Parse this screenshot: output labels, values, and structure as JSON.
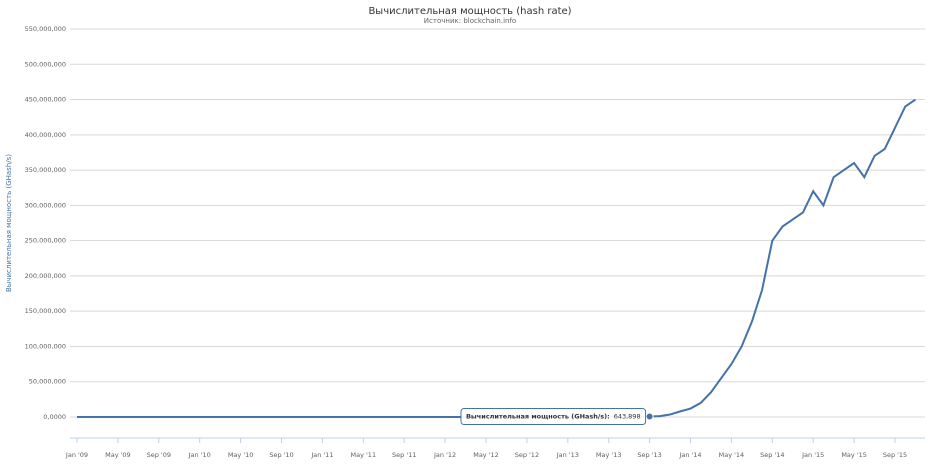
{
  "chart_data": {
    "type": "line",
    "title": "Вычислительная мощность (hash rate)",
    "subtitle": "Источник: blockchain.info",
    "y_label": "Вычислительная мощность (GHash/s)",
    "x": [
      "2009-01",
      "2009-02",
      "2009-03",
      "2009-04",
      "2009-05",
      "2009-06",
      "2009-07",
      "2009-08",
      "2009-09",
      "2009-10",
      "2009-11",
      "2009-12",
      "2010-01",
      "2010-02",
      "2010-03",
      "2010-04",
      "2010-05",
      "2010-06",
      "2010-07",
      "2010-08",
      "2010-09",
      "2010-10",
      "2010-11",
      "2010-12",
      "2011-01",
      "2011-02",
      "2011-03",
      "2011-04",
      "2011-05",
      "2011-06",
      "2011-07",
      "2011-08",
      "2011-09",
      "2011-10",
      "2011-11",
      "2011-12",
      "2012-01",
      "2012-02",
      "2012-03",
      "2012-04",
      "2012-05",
      "2012-06",
      "2012-07",
      "2012-08",
      "2012-09",
      "2012-10",
      "2012-11",
      "2012-12",
      "2013-01",
      "2013-02",
      "2013-03",
      "2013-04",
      "2013-05",
      "2013-06",
      "2013-07",
      "2013-08",
      "2013-09",
      "2013-10",
      "2013-11",
      "2013-12",
      "2014-01",
      "2014-02",
      "2014-03",
      "2014-04",
      "2014-05",
      "2014-06",
      "2014-07",
      "2014-08",
      "2014-09",
      "2014-10",
      "2014-11",
      "2014-12",
      "2015-01",
      "2015-02",
      "2015-03",
      "2015-04",
      "2015-05",
      "2015-06",
      "2015-07",
      "2015-08",
      "2015-09",
      "2015-10",
      "2015-11"
    ],
    "series": [
      {
        "name": "Вычислительная мощность (GHash/s)",
        "color": "#4572a7",
        "values": [
          0.004,
          0.005,
          0.006,
          0.007,
          0.007,
          0.008,
          0.01,
          0.01,
          0.01,
          0.02,
          0.03,
          0.05,
          0.1,
          0.2,
          0.3,
          0.5,
          1,
          2,
          5,
          20,
          50,
          100,
          150,
          200,
          300,
          600,
          1000,
          1500,
          2500,
          6000,
          10000,
          12000,
          10000,
          9000,
          8000,
          8500,
          9000,
          10000,
          11000,
          12000,
          13000,
          15000,
          18000,
          20000,
          22000,
          24000,
          25000,
          22000,
          24000,
          28000,
          40000,
          60000,
          80000,
          100000,
          180000,
          350000,
          643898,
          1200000,
          3500000,
          8000000,
          12000000,
          20000000,
          35000000,
          55000000,
          75000000,
          100000000,
          135000000,
          180000000,
          250000000,
          270000000,
          280000000,
          290000000,
          320000000,
          300000000,
          340000000,
          350000000,
          360000000,
          340000000,
          370000000,
          380000000,
          410000000,
          440000000,
          450000000
        ]
      }
    ],
    "ylim": [
      0,
      550000000
    ],
    "yticks": [
      {
        "value": 0,
        "label": "0,0000"
      },
      {
        "value": 50000000,
        "label": "50,000,000"
      },
      {
        "value": 100000000,
        "label": "100,000,000"
      },
      {
        "value": 150000000,
        "label": "150,000,000"
      },
      {
        "value": 200000000,
        "label": "200,000,000"
      },
      {
        "value": 250000000,
        "label": "250,000,000"
      },
      {
        "value": 300000000,
        "label": "300,000,000"
      },
      {
        "value": 350000000,
        "label": "350,000,000"
      },
      {
        "value": 400000000,
        "label": "400,000,000"
      },
      {
        "value": 450000000,
        "label": "450,000,000"
      },
      {
        "value": 500000000,
        "label": "500,000,000"
      },
      {
        "value": 550000000,
        "label": "550,000,000"
      }
    ],
    "xticks": [
      {
        "value": "2009-01",
        "label": "Jan '09"
      },
      {
        "value": "2009-05",
        "label": "May '09"
      },
      {
        "value": "2009-09",
        "label": "Sep '09"
      },
      {
        "value": "2010-01",
        "label": "Jan '10"
      },
      {
        "value": "2010-05",
        "label": "May '10"
      },
      {
        "value": "2010-09",
        "label": "Sep '10"
      },
      {
        "value": "2011-01",
        "label": "Jan '11"
      },
      {
        "value": "2011-05",
        "label": "May '11"
      },
      {
        "value": "2011-09",
        "label": "Sep '11"
      },
      {
        "value": "2012-01",
        "label": "Jan '12"
      },
      {
        "value": "2012-05",
        "label": "May '12"
      },
      {
        "value": "2012-09",
        "label": "Sep '12"
      },
      {
        "value": "2013-01",
        "label": "Jan '13"
      },
      {
        "value": "2013-05",
        "label": "May '13"
      },
      {
        "value": "2013-09",
        "label": "Sep '13"
      },
      {
        "value": "2014-01",
        "label": "Jan '14"
      },
      {
        "value": "2014-05",
        "label": "May '14"
      },
      {
        "value": "2014-09",
        "label": "Sep '14"
      },
      {
        "value": "2015-01",
        "label": "Jan '15"
      },
      {
        "value": "2015-05",
        "label": "May '15"
      },
      {
        "value": "2015-09",
        "label": "Sep '15"
      }
    ],
    "grid": true,
    "tooltip": {
      "label": "Вычислительная мощность (GHash/s):",
      "x": "2013-09",
      "value": 643898,
      "value_label": "643,898"
    }
  }
}
